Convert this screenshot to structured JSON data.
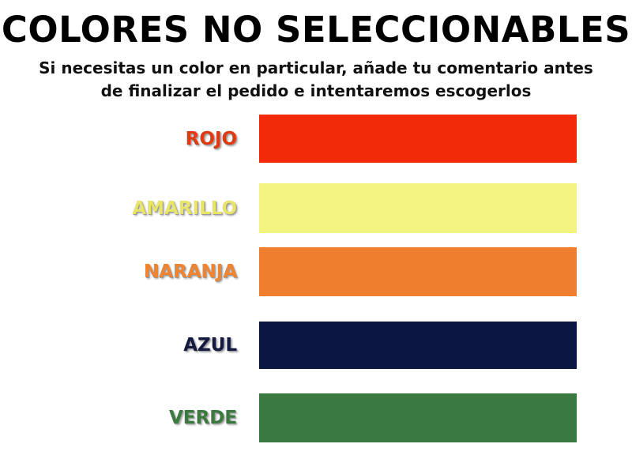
{
  "header": {
    "title": "COLORES NO SELECCIONABLES",
    "subtitle": "Si necesitas un color en particular, añade tu comentario antes de finalizar el pedido e intentaremos escogerlos"
  },
  "colors": [
    {
      "label": "ROJO",
      "label_color": "#e03a12",
      "swatch": "#f22a09"
    },
    {
      "label": "AMARILLO",
      "label_color": "#e8e56a",
      "swatch": "#f3f47f"
    },
    {
      "label": "NARANJA",
      "label_color": "#f08430",
      "swatch": "#ef7f2e"
    },
    {
      "label": "AZUL",
      "label_color": "#13193f",
      "swatch": "#0c1642"
    },
    {
      "label": "VERDE",
      "label_color": "#3a7a3e",
      "swatch": "#3a7a40"
    }
  ]
}
